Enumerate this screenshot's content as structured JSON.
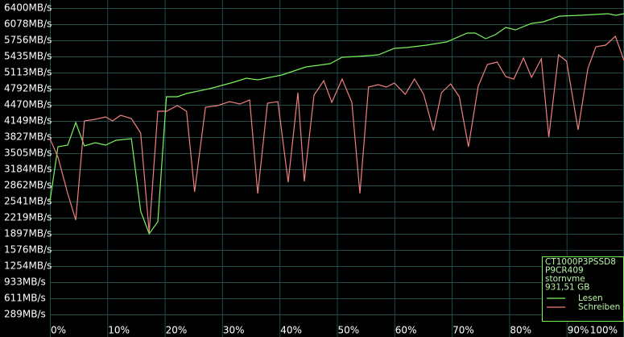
{
  "chart_data": {
    "type": "line",
    "xlim": [
      0,
      100
    ],
    "ylim": [
      0,
      6400
    ],
    "grid": true,
    "xticks": [
      {
        "value": 0,
        "label": "0%"
      },
      {
        "value": 10,
        "label": "10%"
      },
      {
        "value": 20,
        "label": "20%"
      },
      {
        "value": 30,
        "label": "30%"
      },
      {
        "value": 40,
        "label": "40%"
      },
      {
        "value": 50,
        "label": "50%"
      },
      {
        "value": 60,
        "label": "60%"
      },
      {
        "value": 70,
        "label": "70%"
      },
      {
        "value": 80,
        "label": "80%"
      },
      {
        "value": 90,
        "label": "90%"
      },
      {
        "value": 100,
        "label": "100%"
      }
    ],
    "yticks": [
      {
        "value": 6400,
        "label": "6400MB/s"
      },
      {
        "value": 6078,
        "label": "6078MB/s"
      },
      {
        "value": 5756,
        "label": "5756MB/s"
      },
      {
        "value": 5435,
        "label": "5435MB/s"
      },
      {
        "value": 5113,
        "label": "5113MB/s"
      },
      {
        "value": 4792,
        "label": "4792MB/s"
      },
      {
        "value": 4470,
        "label": "4470MB/s"
      },
      {
        "value": 4149,
        "label": "4149MB/s"
      },
      {
        "value": 3827,
        "label": "3827MB/s"
      },
      {
        "value": 3505,
        "label": "3505MB/s"
      },
      {
        "value": 3184,
        "label": "3184MB/s"
      },
      {
        "value": 2862,
        "label": "2862MB/s"
      },
      {
        "value": 2541,
        "label": "2541MB/s"
      },
      {
        "value": 2219,
        "label": "2219MB/s"
      },
      {
        "value": 1897,
        "label": "1897MB/s"
      },
      {
        "value": 1576,
        "label": "1576MB/s"
      },
      {
        "value": 1254,
        "label": "1254MB/s"
      },
      {
        "value": 933,
        "label": "933MB/s"
      },
      {
        "value": 611,
        "label": "611MB/s"
      },
      {
        "value": 289,
        "label": "289MB/s"
      }
    ],
    "annotations": [
      "CT1000P3PSSD8",
      "P9CR409",
      "stornvme",
      "931,51 GB"
    ],
    "legend": "lower right",
    "series": [
      {
        "name": "Lesen",
        "color": "#7cf25c",
        "x": [
          0,
          1.4,
          3.1,
          4.5,
          6.0,
          7.9,
          9.7,
          11.5,
          14.2,
          15.8,
          17.3,
          18.8,
          20.3,
          22.2,
          23.8,
          27.8,
          32.0,
          34.2,
          36.2,
          40.4,
          44.6,
          48.8,
          50.9,
          53.7,
          57.2,
          60.0,
          62.1,
          65.6,
          69.1,
          72.7,
          74.1,
          75.9,
          77.6,
          79.4,
          81.1,
          83.9,
          86.0,
          88.8,
          92.3,
          97.2,
          98.6,
          100
        ],
        "values": [
          2540,
          3634,
          3666,
          4117,
          3650,
          3715,
          3666,
          3763,
          3795,
          2348,
          1897,
          2139,
          4631,
          4631,
          4695,
          4792,
          4920,
          5001,
          4969,
          5065,
          5226,
          5290,
          5419,
          5435,
          5467,
          5596,
          5612,
          5660,
          5724,
          5901,
          5901,
          5789,
          5869,
          6014,
          5966,
          6094,
          6126,
          6239,
          6255,
          6287,
          6255,
          6287
        ]
      },
      {
        "name": "Schreiben",
        "color": "#f08080",
        "x": [
          0,
          1.4,
          3.1,
          4.5,
          6.0,
          7.9,
          9.7,
          10.9,
          12.3,
          14.2,
          15.8,
          17.3,
          18.8,
          20.3,
          22.2,
          23.8,
          25.2,
          27.1,
          29.2,
          31.3,
          33.1,
          34.8,
          36.2,
          37.9,
          39.7,
          41.5,
          43.2,
          44.3,
          46.0,
          47.7,
          49.1,
          50.9,
          52.6,
          54.0,
          55.5,
          57.2,
          58.6,
          60.0,
          61.9,
          63.5,
          65.1,
          66.8,
          68.2,
          69.8,
          71.3,
          72.9,
          74.6,
          76.2,
          77.9,
          79.4,
          80.8,
          82.5,
          83.9,
          85.6,
          86.9,
          88.6,
          90.0,
          92.0,
          93.7,
          95.1,
          96.8,
          98.5,
          100
        ],
        "values": [
          3795,
          3425,
          2701,
          2171,
          4149,
          4181,
          4229,
          4149,
          4261,
          4197,
          3907,
          1926,
          4342,
          4342,
          4454,
          4342,
          2734,
          4422,
          4454,
          4535,
          4486,
          4567,
          2701,
          4502,
          4535,
          2927,
          4711,
          2943,
          4663,
          4953,
          4519,
          4985,
          4519,
          2701,
          4824,
          4872,
          4824,
          4904,
          4679,
          4985,
          4679,
          3956,
          4711,
          4888,
          4631,
          3634,
          4840,
          5274,
          5322,
          5033,
          4985,
          5403,
          5017,
          5387,
          3827,
          5467,
          5339,
          3972,
          5194,
          5628,
          5660,
          5837,
          5355
        ]
      }
    ]
  }
}
